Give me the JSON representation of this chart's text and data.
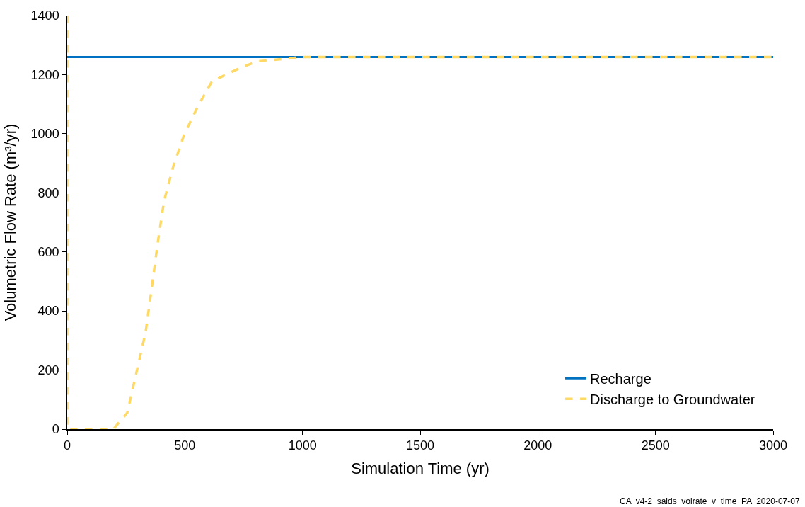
{
  "chart_data": {
    "type": "line",
    "xlabel": "Simulation Time (yr)",
    "ylabel": "Volumetric Flow Rate (m³/yr)",
    "xlim": [
      0,
      3000
    ],
    "xticks": [
      0,
      500,
      1000,
      1500,
      2000,
      2500,
      3000
    ],
    "ylim": [
      0,
      1400
    ],
    "yticks": [
      0,
      200,
      400,
      600,
      800,
      1000,
      1200,
      1400
    ],
    "grid": false,
    "legend": "bottom right",
    "marker": "none",
    "series": [
      {
        "name": "Recharge",
        "color": "#0070c0",
        "line_style": "solid",
        "x": [
          0,
          3000
        ],
        "values": [
          1260,
          1260
        ]
      },
      {
        "name": "Discharge to Groundwater",
        "color": "#ffd966",
        "line_style": "dashed",
        "x": [
          0,
          0,
          196,
          255,
          294,
          333,
          360,
          386,
          412,
          451,
          497,
          556,
          615,
          727,
          806,
          904,
          1000,
          3000
        ],
        "values": [
          1400,
          0,
          0,
          55,
          191,
          327,
          483,
          638,
          774,
          890,
          997,
          1094,
          1177,
          1220,
          1245,
          1252,
          1260,
          1260
        ]
      }
    ],
    "annotations": [
      "CA  v4-2  salds  volrate  v  time  PA  2020-07-07"
    ]
  }
}
